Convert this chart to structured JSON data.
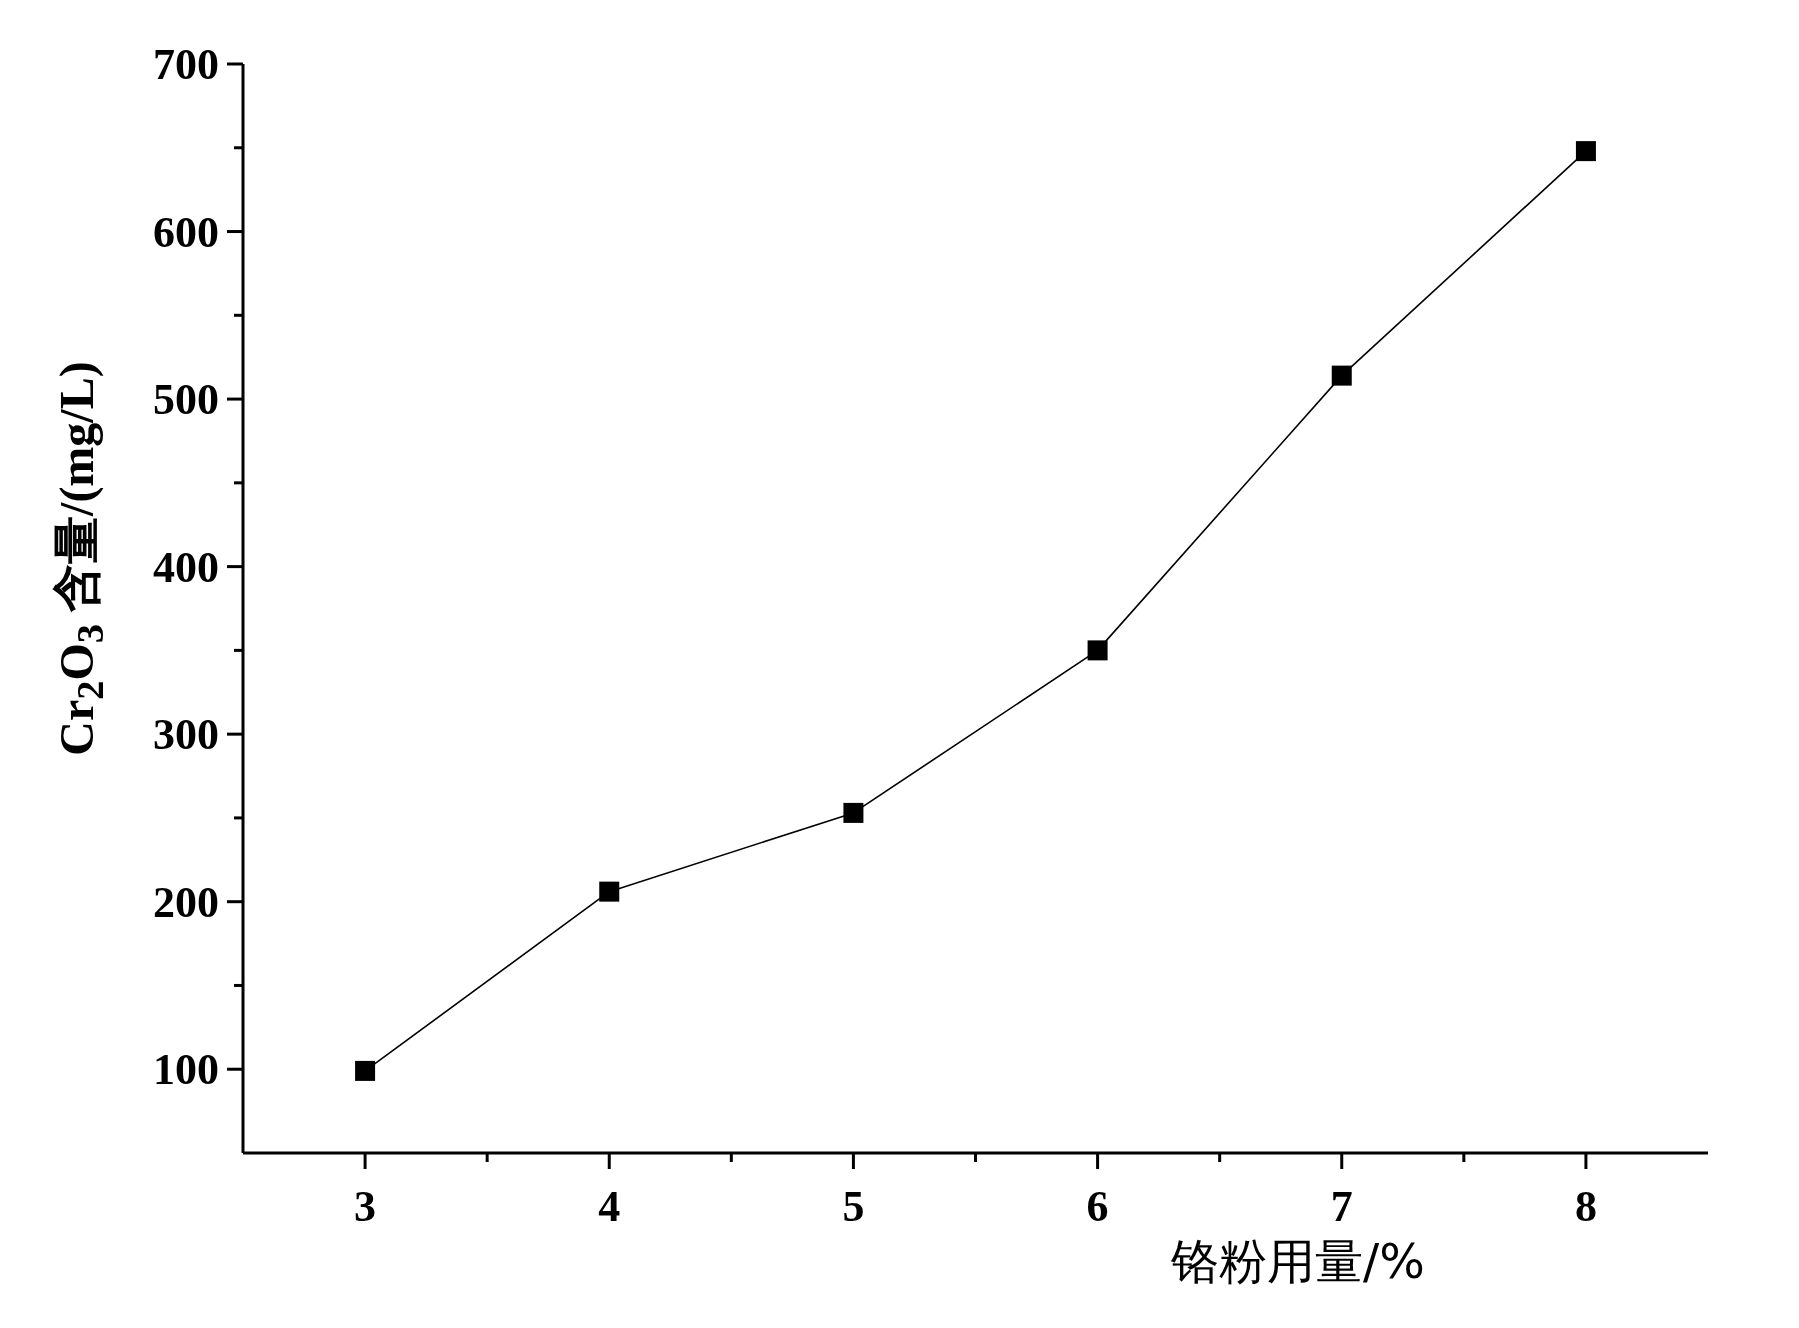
{
  "chart_data": {
    "type": "line",
    "xlabel": "铬粉用量/%",
    "ylabel": "Cr$_{2}$O$_{3}$ 含量/(mg/L)",
    "x": [
      3,
      4,
      5,
      6,
      7,
      8
    ],
    "series": [
      {
        "color": "#000000",
        "values": [
          99,
          206,
          253,
          350,
          514,
          648
        ]
      }
    ],
    "xlim": [
      2.5,
      8.5
    ],
    "xticks": [
      3,
      {
        "value": 3.5,
        "label": null
      },
      4,
      {
        "value": 4.5,
        "label": null
      },
      5,
      {
        "value": 5.5,
        "label": null
      },
      6,
      {
        "value": 6.5,
        "label": null
      },
      7,
      {
        "value": 7.5,
        "label": null
      },
      8
    ],
    "ylim": [
      50,
      700
    ],
    "yticks": [
      100,
      {
        "value": 150,
        "label": null
      },
      200,
      {
        "value": 250,
        "label": null
      },
      300,
      {
        "value": 350,
        "label": null
      },
      400,
      {
        "value": 450,
        "label": null
      },
      500,
      {
        "value": 550,
        "label": null
      },
      600,
      {
        "value": 650,
        "label": null
      },
      700
    ],
    "marker": "square",
    "line_style": "solid",
    "grid": false
  }
}
